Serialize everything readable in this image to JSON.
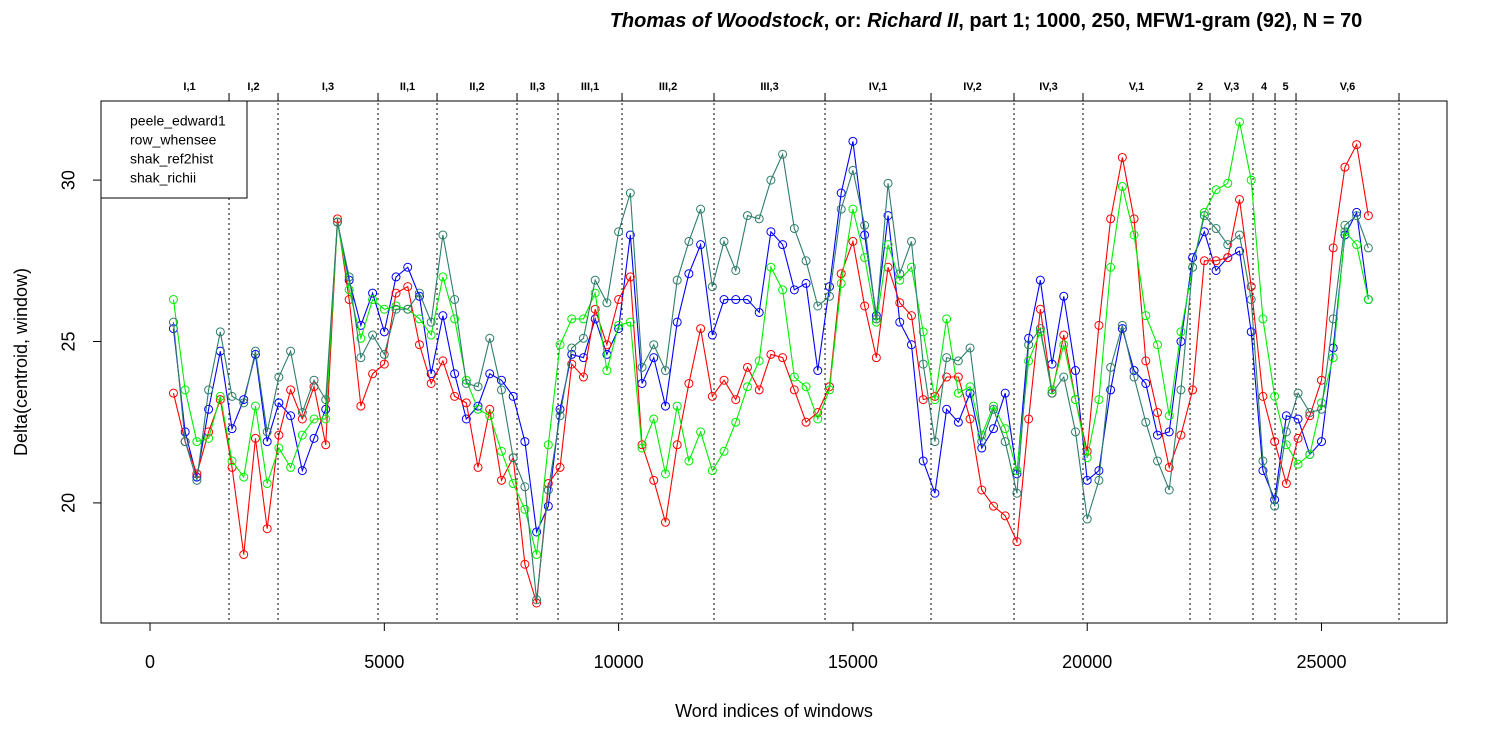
{
  "chart_data": {
    "type": "line",
    "title_parts": [
      "Thomas of Woodstock",
      ", or: ",
      "Richard II",
      ", part 1; 1000, 250, MFW1-gram (92), N = 70"
    ],
    "x_label": "Word indices of windows",
    "y_label": "Delta(centroid, window)",
    "xlim": [
      -1046,
      27678
    ],
    "ylim": [
      16.28,
      32.45
    ],
    "xticks": [
      0,
      5000,
      10000,
      15000,
      20000,
      25000
    ],
    "yticks": [
      20,
      25,
      30
    ],
    "legend": "topleft",
    "scenes": [
      "I,1",
      "I,2",
      "I,3",
      "II,1",
      "II,2",
      "II,3",
      "III,1",
      "III,2",
      "III,3",
      "IV,1",
      "IV,2",
      "IV,3",
      "V,1",
      "2",
      "V,3",
      "4",
      "5",
      "V,6"
    ],
    "scene_boundaries": [
      1686,
      2732,
      4866,
      6125,
      7832,
      8707,
      10073,
      12036,
      14405,
      16667,
      18438,
      19910,
      22194,
      22620,
      23538,
      24008,
      24456,
      26654
    ],
    "x": [
      500,
      750,
      1000,
      1250,
      1500,
      1750,
      2000,
      2250,
      2500,
      2750,
      3000,
      3250,
      3500,
      3750,
      4000,
      4250,
      4500,
      4750,
      5000,
      5250,
      5500,
      5750,
      6000,
      6250,
      6500,
      6750,
      7000,
      7250,
      7500,
      7750,
      8000,
      8250,
      8500,
      8750,
      9000,
      9250,
      9500,
      9750,
      10000,
      10250,
      10500,
      10750,
      11000,
      11250,
      11500,
      11750,
      12000,
      12250,
      12500,
      12750,
      13000,
      13250,
      13500,
      13750,
      14000,
      14250,
      14500,
      14750,
      15000,
      15250,
      15500,
      15750,
      16000,
      16250,
      16500,
      16750,
      17000,
      17250,
      17500,
      17750,
      18000,
      18250,
      18500,
      18750,
      19000,
      19250,
      19500,
      19750,
      20000,
      20250,
      20500,
      20750,
      21000,
      21250,
      21500,
      21750,
      22000,
      22250,
      22500,
      22750,
      23000,
      23250,
      23500,
      23750,
      24000,
      24250,
      24500,
      24750,
      25000,
      25250,
      25500,
      25750,
      26000
    ],
    "series": [
      {
        "name": "peele_edward1",
        "color": "#0000ff",
        "values": [
          25.4,
          22.2,
          20.8,
          22.9,
          24.7,
          22.3,
          23.2,
          24.6,
          21.9,
          23.1,
          22.7,
          21.0,
          22.0,
          22.9,
          28.7,
          26.9,
          25.5,
          26.5,
          25.3,
          27.0,
          27.3,
          26.4,
          24.0,
          25.8,
          24.0,
          22.6,
          23.0,
          24.0,
          23.8,
          23.3,
          21.9,
          19.1,
          19.9,
          22.9,
          24.6,
          24.5,
          25.7,
          24.6,
          25.4,
          28.3,
          23.7,
          24.5,
          23.0,
          25.6,
          27.1,
          28.0,
          25.2,
          26.3,
          26.3,
          26.3,
          25.9,
          28.4,
          28.0,
          26.6,
          26.8,
          24.1,
          26.7,
          29.6,
          31.2,
          28.3,
          25.8,
          28.9,
          25.6,
          24.9,
          21.3,
          20.3,
          22.9,
          22.5,
          23.4,
          21.7,
          22.3,
          23.4,
          20.9,
          25.1,
          26.9,
          24.3,
          26.4,
          24.1,
          20.7,
          21.0,
          23.5,
          25.4,
          24.1,
          23.7,
          22.1,
          22.2,
          25.0,
          27.6,
          28.4,
          27.2,
          27.6,
          27.8,
          25.3,
          21.0,
          20.1,
          22.7,
          22.6,
          21.5,
          21.9,
          24.8,
          28.3,
          29.0,
          26.3
        ]
      },
      {
        "name": "row_whensee",
        "color": "#ff0000",
        "values": [
          23.4,
          21.9,
          20.9,
          22.2,
          23.2,
          21.1,
          18.4,
          22.0,
          19.2,
          22.1,
          23.5,
          22.6,
          23.6,
          21.8,
          28.8,
          26.3,
          23.0,
          24.0,
          24.3,
          26.5,
          26.7,
          24.9,
          23.7,
          24.4,
          23.3,
          23.1,
          21.1,
          22.9,
          20.7,
          21.4,
          18.1,
          16.9,
          20.6,
          21.1,
          24.3,
          23.9,
          26.0,
          24.9,
          26.3,
          27.0,
          21.8,
          20.7,
          19.4,
          21.8,
          23.7,
          25.4,
          23.3,
          23.8,
          23.2,
          24.2,
          23.5,
          24.6,
          24.5,
          23.5,
          22.5,
          22.8,
          23.6,
          27.1,
          28.1,
          26.1,
          24.5,
          27.3,
          26.2,
          25.8,
          23.2,
          23.3,
          23.9,
          23.9,
          22.6,
          20.4,
          19.9,
          19.6,
          18.8,
          22.6,
          26.0,
          23.4,
          25.2,
          23.2,
          21.6,
          25.5,
          28.8,
          30.7,
          28.8,
          24.4,
          22.8,
          21.1,
          22.1,
          23.5,
          27.5,
          27.5,
          27.6,
          29.4,
          26.7,
          23.3,
          21.9,
          20.6,
          22.0,
          22.7,
          23.8,
          27.9,
          30.4,
          31.1,
          28.9
        ]
      },
      {
        "name": "shak_ref2hist",
        "color": "#00ee00",
        "values": [
          26.3,
          23.5,
          21.9,
          22.0,
          23.3,
          21.3,
          20.8,
          23.0,
          20.6,
          21.7,
          21.1,
          22.1,
          22.6,
          22.6,
          28.7,
          26.6,
          25.1,
          26.3,
          26.0,
          26.1,
          26.0,
          25.7,
          25.2,
          27.0,
          25.7,
          23.8,
          22.9,
          22.7,
          21.6,
          20.6,
          19.8,
          18.4,
          21.8,
          24.9,
          25.7,
          25.7,
          26.5,
          24.1,
          25.5,
          25.6,
          21.7,
          22.6,
          20.9,
          23.0,
          21.3,
          22.2,
          21.0,
          21.6,
          22.5,
          23.6,
          24.4,
          27.3,
          26.6,
          23.9,
          23.6,
          22.6,
          23.5,
          26.8,
          29.1,
          27.6,
          25.6,
          28.0,
          26.9,
          27.3,
          25.3,
          23.2,
          25.7,
          23.4,
          23.6,
          22.1,
          23.0,
          22.3,
          21.0,
          24.4,
          25.3,
          23.5,
          24.9,
          23.2,
          21.4,
          23.2,
          27.3,
          29.8,
          28.3,
          25.8,
          24.9,
          22.7,
          25.3,
          27.3,
          29.0,
          29.7,
          29.9,
          31.8,
          30.0,
          25.7,
          23.3,
          21.8,
          21.2,
          21.5,
          23.1,
          24.5,
          28.4,
          28.0,
          26.3
        ]
      },
      {
        "name": "shak_richii",
        "color": "#2e7d6b",
        "values": [
          25.6,
          21.9,
          20.7,
          23.5,
          25.3,
          23.3,
          23.1,
          24.7,
          22.2,
          23.9,
          24.7,
          22.8,
          23.8,
          23.2,
          28.7,
          27.0,
          24.5,
          25.2,
          24.6,
          26.0,
          26.0,
          26.5,
          25.6,
          28.3,
          26.3,
          23.7,
          23.6,
          25.1,
          23.5,
          21.4,
          20.5,
          17.0,
          20.4,
          22.7,
          24.8,
          25.1,
          26.9,
          26.2,
          28.4,
          29.6,
          24.2,
          24.9,
          24.1,
          26.9,
          28.1,
          29.1,
          26.7,
          28.1,
          27.2,
          28.9,
          28.8,
          30.0,
          30.8,
          28.5,
          27.5,
          26.1,
          26.4,
          29.1,
          30.3,
          28.6,
          25.7,
          29.9,
          27.1,
          28.1,
          24.3,
          21.9,
          24.5,
          24.4,
          24.8,
          21.9,
          22.9,
          21.9,
          20.3,
          24.9,
          25.4,
          23.4,
          23.9,
          22.2,
          19.5,
          20.7,
          24.2,
          25.5,
          23.9,
          22.5,
          21.3,
          20.4,
          23.5,
          27.3,
          28.9,
          28.5,
          28.0,
          28.3,
          26.3,
          21.3,
          19.9,
          22.2,
          23.4,
          22.8,
          22.9,
          25.7,
          28.6,
          28.9,
          27.9
        ]
      }
    ]
  }
}
